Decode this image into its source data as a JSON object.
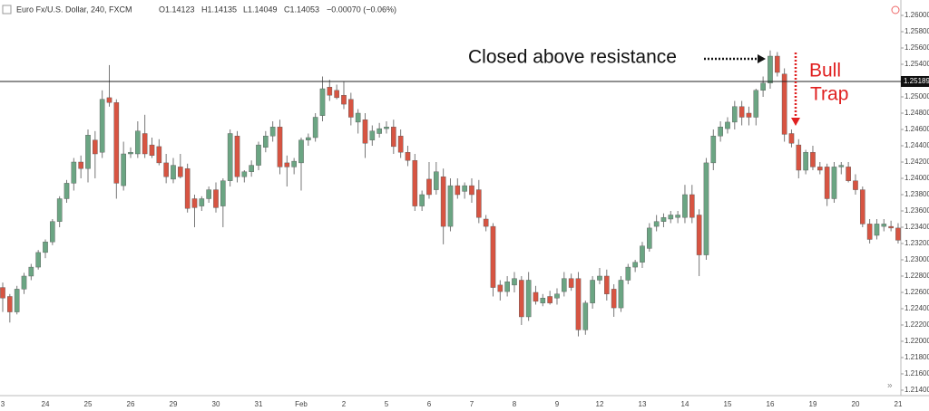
{
  "chart_data": {
    "type": "candlestick",
    "header": {
      "symbol": "Euro Fx/U.S. Dollar, 240, FXCM",
      "open": "O1.14123",
      "high": "H1.14135",
      "low": "L1.14049",
      "close": "C1.14053",
      "change": "−0.00070 (−0.06%)"
    },
    "annotations": [
      "Closed above resistance",
      "Bull",
      "Trap"
    ],
    "price_line": {
      "value": 1.25189,
      "label": "1.25189"
    },
    "up_color": "#6ba583",
    "down_color": "#d75442",
    "ylim": [
      1.21333,
      1.26189
    ],
    "yticks": [
      {
        "value": 1.214,
        "label": "1.21400"
      },
      {
        "value": 1.216,
        "label": "1.21600"
      },
      {
        "value": 1.218,
        "label": "1.21800"
      },
      {
        "value": 1.22,
        "label": "1.22000"
      },
      {
        "value": 1.222,
        "label": "1.22200"
      },
      {
        "value": 1.224,
        "label": "1.22400"
      },
      {
        "value": 1.226,
        "label": "1.22600"
      },
      {
        "value": 1.228,
        "label": "1.22800"
      },
      {
        "value": 1.23,
        "label": "1.23000"
      },
      {
        "value": 1.232,
        "label": "1.23200"
      },
      {
        "value": 1.234,
        "label": "1.23400"
      },
      {
        "value": 1.236,
        "label": "1.23600"
      },
      {
        "value": 1.238,
        "label": "1.23800"
      },
      {
        "value": 1.24,
        "label": "1.24000"
      },
      {
        "value": 1.242,
        "label": "1.24200"
      },
      {
        "value": 1.244,
        "label": "1.24400"
      },
      {
        "value": 1.246,
        "label": "1.24600"
      },
      {
        "value": 1.248,
        "label": "1.24800"
      },
      {
        "value": 1.25,
        "label": "1.25000"
      },
      {
        "value": 1.252,
        "label": "1.25200"
      },
      {
        "value": 1.254,
        "label": "1.25400"
      },
      {
        "value": 1.256,
        "label": "1.25600"
      },
      {
        "value": 1.258,
        "label": "1.25800"
      },
      {
        "value": 1.26,
        "label": "1.26000"
      }
    ],
    "categories": [
      "3",
      null,
      null,
      null,
      null,
      null,
      "24",
      null,
      null,
      null,
      null,
      null,
      "25",
      null,
      null,
      null,
      null,
      null,
      "26",
      null,
      null,
      null,
      null,
      null,
      "29",
      null,
      null,
      null,
      null,
      null,
      "30",
      null,
      null,
      null,
      null,
      null,
      "31",
      null,
      null,
      null,
      null,
      null,
      "Feb",
      null,
      null,
      null,
      null,
      null,
      "2",
      null,
      null,
      null,
      null,
      null,
      "5",
      null,
      null,
      null,
      null,
      null,
      "6",
      null,
      null,
      null,
      null,
      null,
      "7",
      null,
      null,
      null,
      null,
      null,
      "8",
      null,
      null,
      null,
      null,
      null,
      "9",
      null,
      null,
      null,
      null,
      null,
      "12",
      null,
      null,
      null,
      null,
      null,
      "13",
      null,
      null,
      null,
      null,
      null,
      "14",
      null,
      null,
      null,
      null,
      null,
      "15",
      null,
      null,
      null,
      null,
      null,
      "16",
      null,
      null,
      null,
      null,
      null,
      "19",
      null,
      null,
      null,
      null,
      null,
      "20",
      null,
      null,
      null,
      null,
      null,
      "21"
    ],
    "open": [
      1.2266,
      1.2255,
      1.2236,
      1.2264,
      1.228,
      1.2291,
      1.2309,
      1.2322,
      1.2347,
      1.2375,
      1.2394,
      1.242,
      1.2412,
      1.2447,
      1.2432,
      1.2499,
      1.2493,
      1.2391,
      1.243,
      1.243,
      1.2455,
      1.2441,
      1.2439,
      1.2419,
      1.2399,
      1.2414,
      1.2412,
      1.2375,
      1.2366,
      1.2375,
      1.2386,
      1.2366,
      1.2397,
      1.2452,
      1.2402,
      1.2408,
      1.2416,
      1.2438,
      1.2452,
      1.2463,
      1.2419,
      1.2414,
      1.2419,
      1.2447,
      1.245,
      1.2477,
      1.2512,
      1.2508,
      1.2502,
      1.2497,
      1.2469,
      1.2472,
      1.2447,
      1.2455,
      1.2461,
      1.2463,
      1.2452,
      1.2432,
      1.2422,
      1.2366,
      1.2399,
      1.2386,
      1.2402,
      1.2341,
      1.2391,
      1.2384,
      1.2391,
      1.2386,
      1.235,
      1.2341,
      1.2269,
      1.2261,
      1.2269,
      1.2275,
      1.223,
      1.226,
      1.2247,
      1.2255,
      1.2253,
      1.2261,
      1.2277,
      1.2277,
      1.2214,
      1.2247,
      1.2275,
      1.228,
      1.2264,
      1.2241,
      1.2275,
      1.2291,
      1.2297,
      1.2314,
      1.2341,
      1.2347,
      1.235,
      1.2352,
      1.2352,
      1.238,
      1.2355,
      1.2306,
      1.2419,
      1.2452,
      1.2461,
      1.2469,
      1.2488,
      1.248,
      1.2475,
      1.2508,
      1.2517,
      1.255,
      1.2528,
      1.2455,
      1.2441,
      1.241,
      1.2432,
      1.2414,
      1.2414,
      1.2375,
      1.2414,
      1.2414,
      1.2397,
      1.2386,
      1.2344,
      1.233,
      1.2341,
      1.2341,
      1.2339
    ],
    "high": [
      1.2272,
      1.2258,
      1.2268,
      1.2284,
      1.2295,
      1.2312,
      1.2325,
      1.235,
      1.2378,
      1.2398,
      1.2425,
      1.2428,
      1.246,
      1.2458,
      1.2508,
      1.2539,
      1.2497,
      1.2445,
      1.2438,
      1.247,
      1.2478,
      1.245,
      1.2448,
      1.243,
      1.2425,
      1.243,
      1.2418,
      1.238,
      1.2378,
      1.239,
      1.2395,
      1.24,
      1.246,
      1.2458,
      1.241,
      1.2422,
      1.2445,
      1.2458,
      1.247,
      1.2472,
      1.2428,
      1.2425,
      1.245,
      1.2455,
      1.248,
      1.2525,
      1.2521,
      1.2515,
      1.2519,
      1.2505,
      1.2485,
      1.248,
      1.2465,
      1.2468,
      1.247,
      1.2472,
      1.246,
      1.244,
      1.243,
      1.2385,
      1.242,
      1.242,
      1.2412,
      1.24,
      1.24,
      1.2395,
      1.24,
      1.2398,
      1.2355,
      1.2345,
      1.2275,
      1.228,
      1.2285,
      1.228,
      1.2285,
      1.2268,
      1.2258,
      1.2262,
      1.2265,
      1.2285,
      1.2283,
      1.2285,
      1.225,
      1.228,
      1.229,
      1.2288,
      1.227,
      1.228,
      1.2295,
      1.23,
      1.2322,
      1.2345,
      1.2355,
      1.2357,
      1.236,
      1.236,
      1.2392,
      1.2392,
      1.2362,
      1.2425,
      1.246,
      1.247,
      1.2475,
      1.2495,
      1.2495,
      1.2488,
      1.251,
      1.2525,
      1.2557,
      1.2555,
      1.2535,
      1.246,
      1.2448,
      1.2435,
      1.244,
      1.242,
      1.2418,
      1.242,
      1.242,
      1.242,
      1.2405,
      1.239,
      1.235,
      1.235,
      1.235,
      1.2348,
      1.2345
    ],
    "low": [
      1.2236,
      1.2223,
      1.2233,
      1.2258,
      1.2275,
      1.2288,
      1.2302,
      1.2318,
      1.234,
      1.237,
      1.2385,
      1.24,
      1.2395,
      1.24,
      1.2425,
      1.2488,
      1.2375,
      1.2385,
      1.2425,
      1.2425,
      1.2425,
      1.2425,
      1.2416,
      1.2394,
      1.2394,
      1.24,
      1.2358,
      1.234,
      1.236,
      1.237,
      1.2358,
      1.234,
      1.239,
      1.2395,
      1.2395,
      1.2402,
      1.241,
      1.2432,
      1.2445,
      1.2405,
      1.239,
      1.2405,
      1.2385,
      1.244,
      1.2445,
      1.247,
      1.2495,
      1.2497,
      1.2485,
      1.2465,
      1.2455,
      1.2425,
      1.244,
      1.245,
      1.2455,
      1.243,
      1.2425,
      1.2415,
      1.236,
      1.236,
      1.2375,
      1.238,
      1.2319,
      1.2335,
      1.2375,
      1.2375,
      1.237,
      1.2345,
      1.2335,
      1.2255,
      1.225,
      1.2255,
      1.226,
      1.222,
      1.2225,
      1.2245,
      1.2243,
      1.2245,
      1.2245,
      1.2255,
      1.2262,
      1.2206,
      1.2208,
      1.224,
      1.227,
      1.225,
      1.223,
      1.2236,
      1.227,
      1.2285,
      1.229,
      1.231,
      1.2335,
      1.234,
      1.2345,
      1.2345,
      1.2345,
      1.2345,
      1.228,
      1.23,
      1.241,
      1.2445,
      1.2455,
      1.246,
      1.2465,
      1.2465,
      1.2465,
      1.25,
      1.251,
      1.2525,
      1.2445,
      1.2438,
      1.24,
      1.2405,
      1.241,
      1.2405,
      1.2366,
      1.237,
      1.2405,
      1.2395,
      1.238,
      1.234,
      1.232,
      1.2325,
      1.2335,
      1.2335,
      1.232
    ],
    "close": [
      1.2253,
      1.2236,
      1.2264,
      1.228,
      1.2291,
      1.2309,
      1.2322,
      1.2347,
      1.2375,
      1.2394,
      1.242,
      1.2412,
      1.2453,
      1.243,
      1.2497,
      1.2493,
      1.2394,
      1.243,
      1.2432,
      1.2458,
      1.243,
      1.2428,
      1.2419,
      1.2402,
      1.2416,
      1.2402,
      1.2363,
      1.2364,
      1.2375,
      1.2386,
      1.2364,
      1.2397,
      1.2455,
      1.2402,
      1.2408,
      1.2416,
      1.2441,
      1.2452,
      1.2463,
      1.2414,
      1.2414,
      1.2421,
      1.2447,
      1.245,
      1.2475,
      1.251,
      1.2502,
      1.2499,
      1.2491,
      1.2475,
      1.248,
      1.2443,
      1.2458,
      1.2461,
      1.2463,
      1.2439,
      1.2432,
      1.2422,
      1.2366,
      1.238,
      1.238,
      1.2408,
      1.2341,
      1.2391,
      1.238,
      1.2391,
      1.238,
      1.2352,
      1.2341,
      1.2266,
      1.2261,
      1.2273,
      1.2277,
      1.223,
      1.2275,
      1.2249,
      1.2253,
      1.2247,
      1.2258,
      1.2277,
      1.2266,
      1.2214,
      1.2247,
      1.2275,
      1.228,
      1.2258,
      1.2241,
      1.2275,
      1.2291,
      1.2297,
      1.2317,
      1.2339,
      1.2347,
      1.2352,
      1.2355,
      1.2355,
      1.238,
      1.2352,
      1.2306,
      1.2419,
      1.2452,
      1.2463,
      1.2469,
      1.2488,
      1.2475,
      1.2475,
      1.2508,
      1.2517,
      1.255,
      1.253,
      1.2454,
      1.2443,
      1.241,
      1.2432,
      1.2414,
      1.241,
      1.2375,
      1.2414,
      1.2416,
      1.2397,
      1.2386,
      1.2344,
      1.2325,
      1.2344,
      1.2344,
      1.2339,
      1.2324
    ]
  }
}
